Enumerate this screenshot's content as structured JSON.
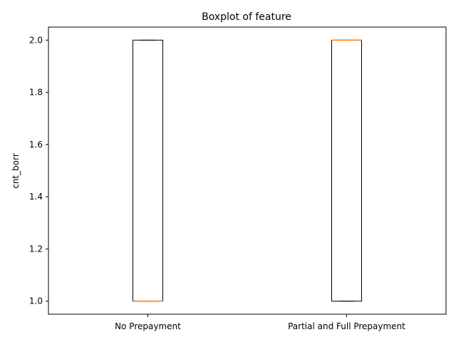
{
  "chart_data": {
    "type": "box",
    "title": "Boxplot of feature",
    "xlabel": "",
    "ylabel": "cnt_borr",
    "ylim": [
      0.95,
      2.05
    ],
    "yticks": [
      "1.0",
      "1.2",
      "1.4",
      "1.6",
      "1.8",
      "2.0"
    ],
    "ytick_values": [
      1.0,
      1.2,
      1.4,
      1.6,
      1.8,
      2.0
    ],
    "grid": false,
    "categories": [
      "No Prepayment",
      "Partial and Full Prepayment"
    ],
    "boxes": [
      {
        "category": "No Prepayment",
        "whisker_low": 1.0,
        "q1": 1.0,
        "median": 1.0,
        "q3": 2.0,
        "whisker_high": 2.0
      },
      {
        "category": "Partial and Full Prepayment",
        "whisker_low": 1.0,
        "q1": 1.0,
        "median": 2.0,
        "q3": 2.0,
        "whisker_high": 2.0
      }
    ],
    "colors": {
      "box": "#000000",
      "median": "#ff7f0e",
      "axes": "#000000"
    }
  }
}
